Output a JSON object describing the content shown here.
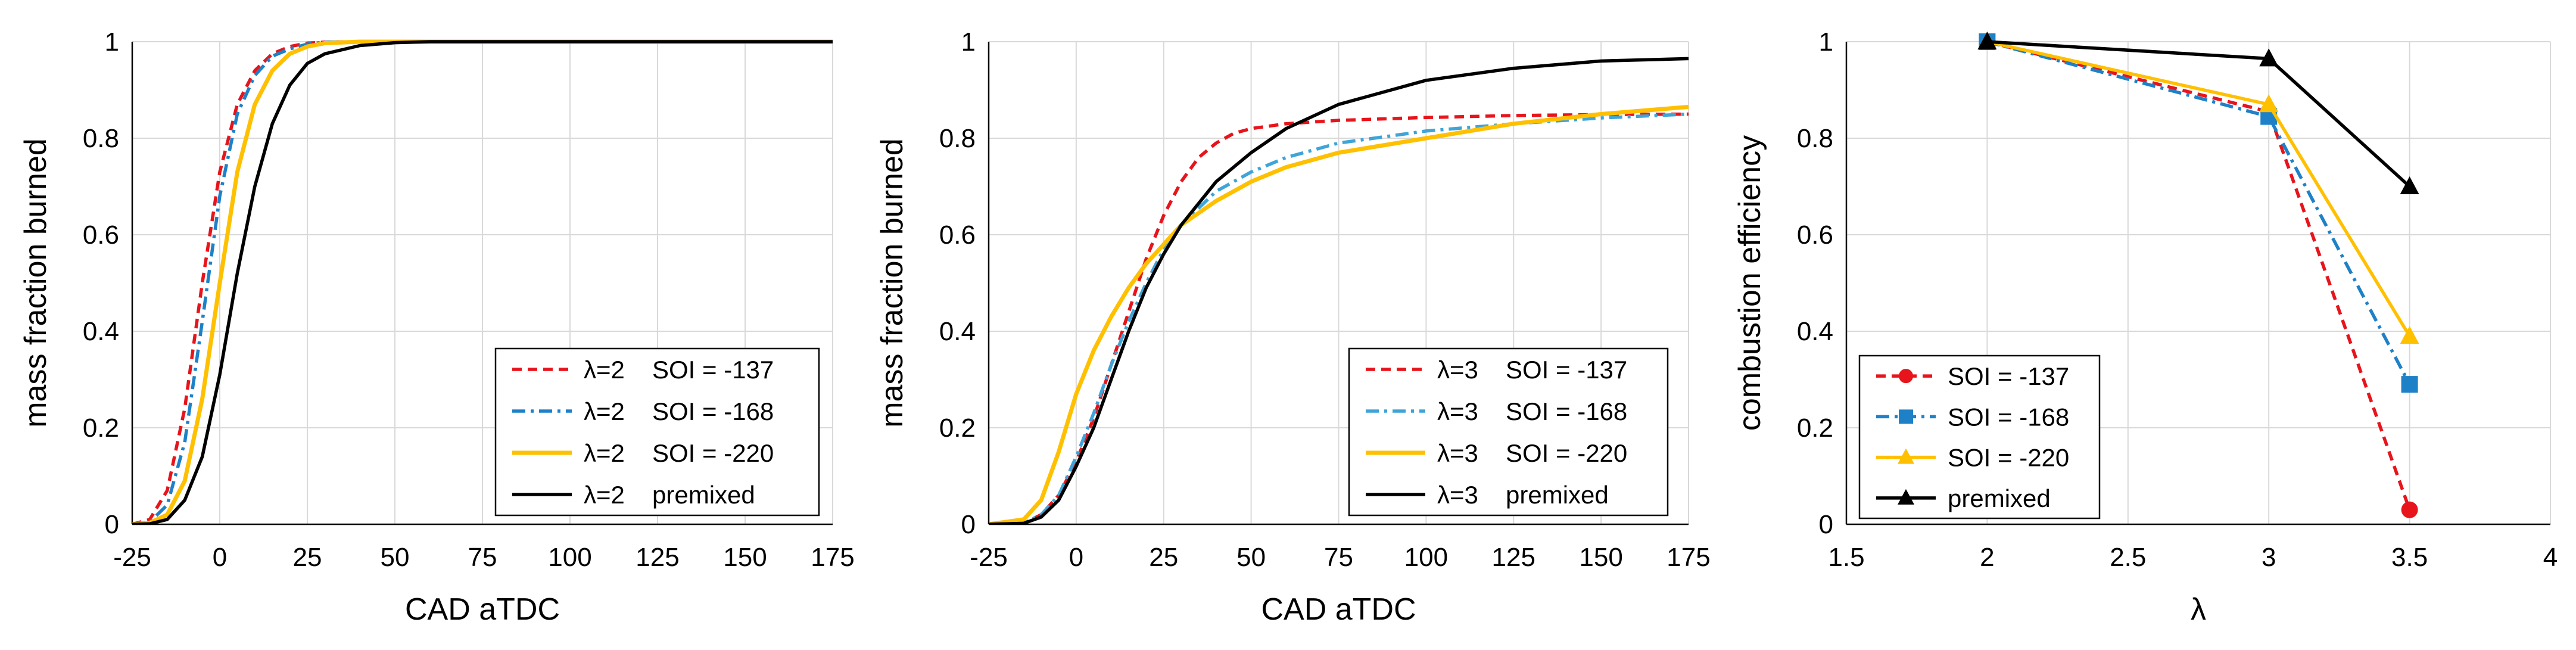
{
  "chart_data": [
    {
      "type": "line",
      "xlabel": "CAD aTDC",
      "ylabel": "mass fraction burned",
      "xlim": [
        -25,
        175
      ],
      "ylim": [
        0,
        1
      ],
      "xticks": [
        "-25",
        "0",
        "25",
        "50",
        "75",
        "100",
        "125",
        "150",
        "175"
      ],
      "yticks": [
        "0",
        "0.2",
        "0.4",
        "0.6",
        "0.8",
        "1"
      ],
      "grid": true,
      "legend_position": "bottom-right",
      "series": [
        {
          "lambda_label": "λ=2",
          "name": "SOI = -137",
          "color": "#e8141b",
          "dash": "dashed",
          "x": [
            -25,
            -20,
            -15,
            -10,
            -5,
            0,
            5,
            10,
            15,
            20,
            25,
            30,
            40,
            50,
            175
          ],
          "y": [
            0,
            0.01,
            0.07,
            0.24,
            0.5,
            0.73,
            0.87,
            0.94,
            0.975,
            0.99,
            0.997,
            0.999,
            1,
            1,
            1
          ]
        },
        {
          "lambda_label": "λ=2",
          "name": "SOI = -168",
          "color": "#1e81c8",
          "dash": "dashdot",
          "x": [
            -25,
            -20,
            -15,
            -10,
            -5,
            0,
            5,
            10,
            15,
            20,
            25,
            30,
            40,
            50,
            175
          ],
          "y": [
            0,
            0.005,
            0.04,
            0.17,
            0.42,
            0.68,
            0.85,
            0.93,
            0.97,
            0.985,
            0.995,
            0.999,
            1,
            1,
            1
          ]
        },
        {
          "lambda_label": "λ=2",
          "name": "SOI = -220",
          "color": "#ffc000",
          "dash": "solid",
          "x": [
            -25,
            -20,
            -15,
            -10,
            -5,
            0,
            5,
            10,
            15,
            20,
            25,
            30,
            40,
            50,
            175
          ],
          "y": [
            0,
            0.003,
            0.02,
            0.09,
            0.26,
            0.5,
            0.73,
            0.87,
            0.94,
            0.975,
            0.99,
            0.997,
            1,
            1,
            1
          ]
        },
        {
          "lambda_label": "λ=2",
          "name": "premixed",
          "color": "#000000",
          "dash": "solid",
          "x": [
            -25,
            -20,
            -15,
            -10,
            -5,
            0,
            5,
            10,
            15,
            20,
            25,
            30,
            40,
            50,
            60,
            175
          ],
          "y": [
            0,
            0.001,
            0.01,
            0.05,
            0.14,
            0.31,
            0.52,
            0.7,
            0.83,
            0.91,
            0.955,
            0.975,
            0.992,
            0.998,
            1,
            1
          ]
        }
      ],
      "legend": [
        "λ=2    SOI = -137",
        "λ=2    SOI = -168",
        "λ=2    SOI = -220",
        "λ=2    premixed"
      ]
    },
    {
      "type": "line",
      "xlabel": "CAD aTDC",
      "ylabel": "mass fraction burned",
      "xlim": [
        -25,
        175
      ],
      "ylim": [
        0,
        1
      ],
      "xticks": [
        "-25",
        "0",
        "25",
        "50",
        "75",
        "100",
        "125",
        "150",
        "175"
      ],
      "yticks": [
        "0",
        "0.2",
        "0.4",
        "0.6",
        "0.8",
        "1"
      ],
      "grid": true,
      "legend_position": "bottom-right",
      "series": [
        {
          "lambda_label": "λ=3",
          "name": "SOI = -137",
          "color": "#e8141b",
          "dash": "dashed",
          "x": [
            -25,
            -15,
            -10,
            -5,
            0,
            5,
            10,
            15,
            20,
            25,
            30,
            35,
            40,
            45,
            50,
            60,
            75,
            100,
            125,
            150,
            175
          ],
          "y": [
            0,
            0.002,
            0.02,
            0.06,
            0.13,
            0.22,
            0.33,
            0.44,
            0.55,
            0.64,
            0.71,
            0.76,
            0.79,
            0.81,
            0.82,
            0.83,
            0.837,
            0.843,
            0.847,
            0.849,
            0.85
          ]
        },
        {
          "lambda_label": "λ=3",
          "name": "SOI = -168",
          "color": "#3fa4d8",
          "dash": "dashdot",
          "x": [
            -25,
            -15,
            -10,
            -5,
            0,
            5,
            10,
            15,
            20,
            25,
            30,
            40,
            50,
            60,
            75,
            100,
            125,
            150,
            175
          ],
          "y": [
            0,
            0.002,
            0.02,
            0.06,
            0.14,
            0.23,
            0.33,
            0.42,
            0.5,
            0.57,
            0.62,
            0.69,
            0.73,
            0.76,
            0.79,
            0.815,
            0.83,
            0.842,
            0.85
          ]
        },
        {
          "lambda_label": "λ=3",
          "name": "SOI = -220",
          "color": "#ffc000",
          "dash": "solid",
          "x": [
            -25,
            -15,
            -10,
            -5,
            0,
            5,
            10,
            15,
            20,
            25,
            30,
            40,
            50,
            60,
            75,
            100,
            125,
            150,
            175
          ],
          "y": [
            0,
            0.01,
            0.05,
            0.15,
            0.27,
            0.36,
            0.43,
            0.49,
            0.54,
            0.58,
            0.62,
            0.67,
            0.71,
            0.74,
            0.77,
            0.8,
            0.83,
            0.85,
            0.865
          ]
        },
        {
          "lambda_label": "λ=3",
          "name": "premixed",
          "color": "#000000",
          "dash": "solid",
          "x": [
            -25,
            -15,
            -10,
            -5,
            0,
            5,
            10,
            15,
            20,
            25,
            30,
            40,
            50,
            60,
            75,
            100,
            125,
            150,
            175
          ],
          "y": [
            0,
            0.002,
            0.015,
            0.05,
            0.12,
            0.2,
            0.3,
            0.4,
            0.49,
            0.56,
            0.62,
            0.71,
            0.77,
            0.82,
            0.87,
            0.92,
            0.945,
            0.96,
            0.965
          ]
        }
      ],
      "legend": [
        "λ=3    SOI = -137",
        "λ=3    SOI = -168",
        "λ=3    SOI = -220",
        "λ=3    premixed"
      ]
    },
    {
      "type": "line",
      "xlabel": "λ",
      "ylabel": "combustion efficiency",
      "xlim": [
        1.5,
        4
      ],
      "ylim": [
        0,
        1
      ],
      "xticks": [
        "1.5",
        "2",
        "2.5",
        "3",
        "3.5",
        "4"
      ],
      "yticks": [
        "0",
        "0.2",
        "0.4",
        "0.6",
        "0.8",
        "1"
      ],
      "grid": true,
      "legend_position": "bottom-left",
      "series": [
        {
          "name": "SOI = -137",
          "color": "#e8141b",
          "dash": "dashed",
          "marker": "circle",
          "x": [
            2,
            3,
            3.5
          ],
          "y": [
            1.0,
            0.855,
            0.03
          ]
        },
        {
          "name": "SOI = -168",
          "color": "#1e81c8",
          "dash": "dashdot",
          "marker": "square",
          "x": [
            2,
            3,
            3.5
          ],
          "y": [
            1.0,
            0.845,
            0.29
          ]
        },
        {
          "name": "SOI = -220",
          "color": "#ffc000",
          "dash": "solid",
          "marker": "triangle",
          "x": [
            2,
            3,
            3.5
          ],
          "y": [
            1.0,
            0.87,
            0.39
          ]
        },
        {
          "name": "premixed",
          "color": "#000000",
          "dash": "solid",
          "marker": "triangle",
          "x": [
            2,
            3,
            3.5
          ],
          "y": [
            1.0,
            0.965,
            0.7
          ]
        }
      ],
      "legend": [
        "SOI = -137",
        "SOI = -168",
        "SOI = -220",
        "premixed"
      ]
    }
  ]
}
